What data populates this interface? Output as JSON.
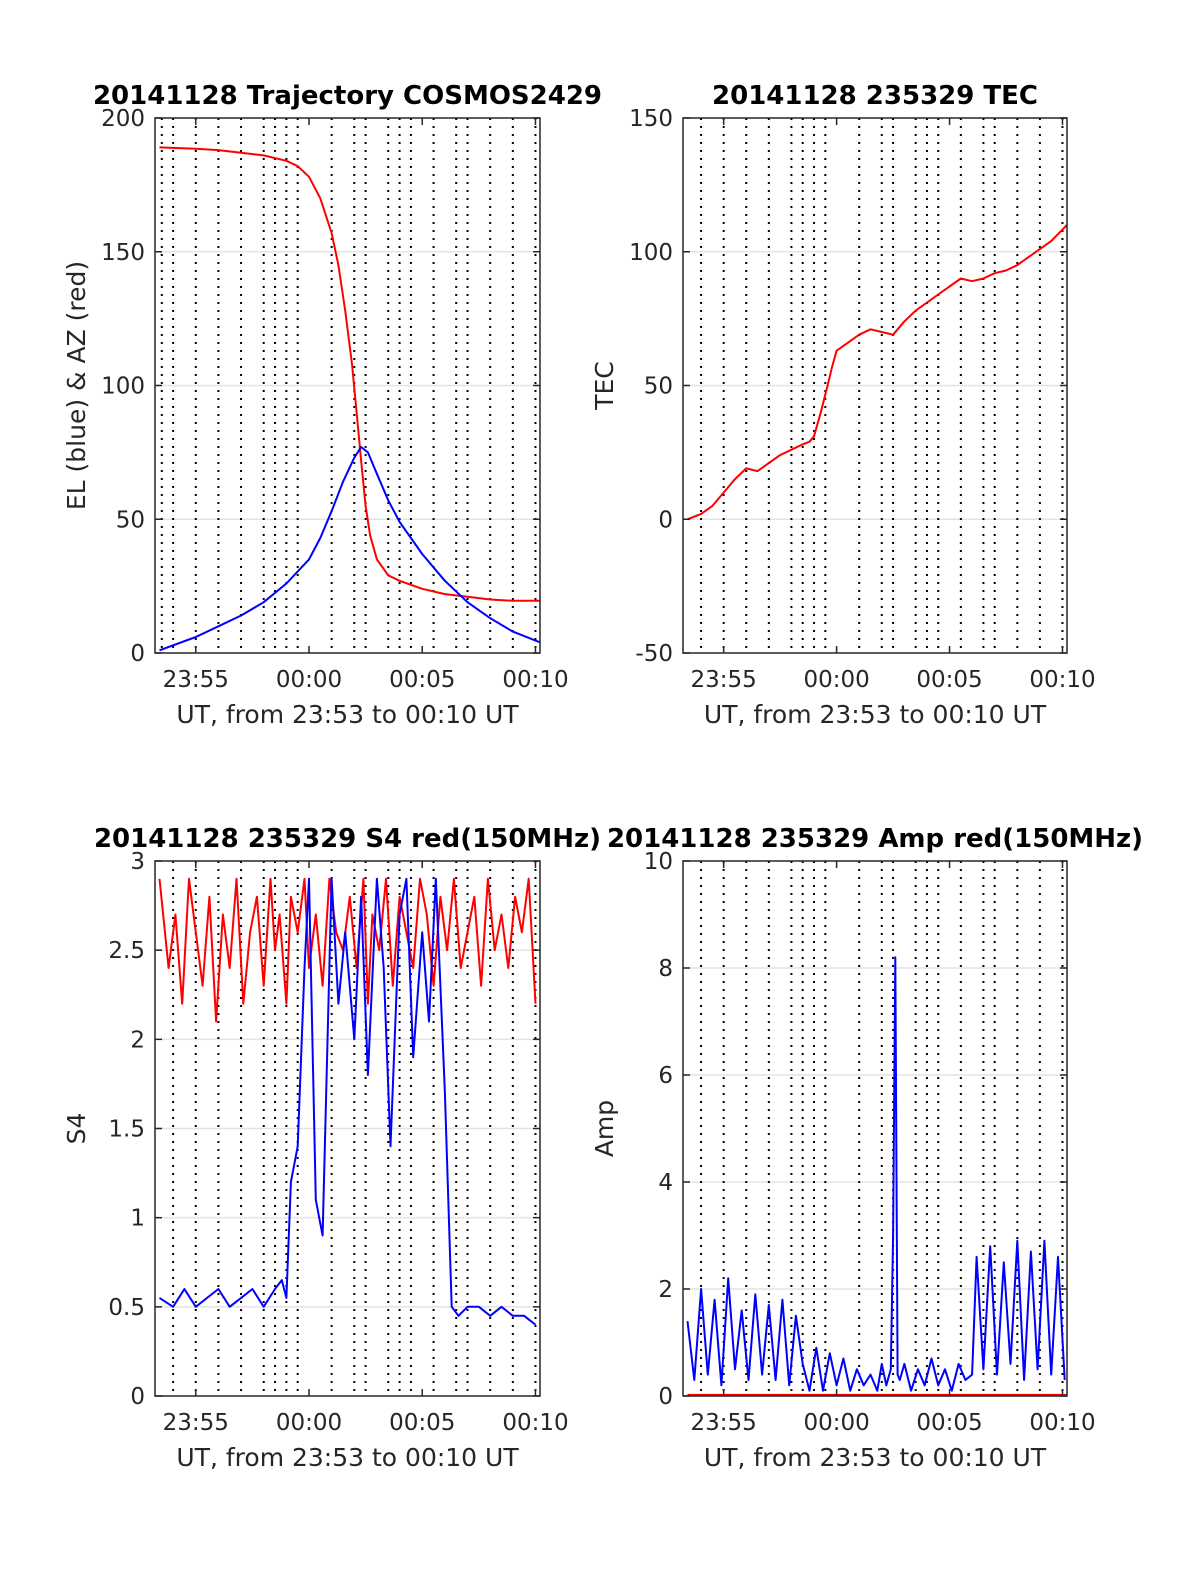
{
  "chart_data": [
    {
      "id": "traj",
      "type": "line",
      "title": "20141128 Trajectory COSMOS2429",
      "xlabel": "UT, from 23:53 to 00:10 UT",
      "ylabel": "EL (blue) & AZ (red)",
      "xlim": [
        -6.8,
        10.2
      ],
      "ylim": [
        0,
        200
      ],
      "xticks": [
        {
          "v": -5,
          "label": "23:55"
        },
        {
          "v": 0,
          "label": "00:00"
        },
        {
          "v": 5,
          "label": "00:05"
        },
        {
          "v": 10,
          "label": "00:10"
        }
      ],
      "yticks": [
        {
          "v": 0,
          "label": "0"
        },
        {
          "v": 50,
          "label": "50"
        },
        {
          "v": 100,
          "label": "100"
        },
        {
          "v": 150,
          "label": "150"
        },
        {
          "v": 200,
          "label": "200"
        }
      ],
      "vlines": [
        -6.5,
        -6.0,
        -5.0,
        -4.0,
        -3.0,
        -2.0,
        -1.5,
        -1.0,
        -0.5,
        1.0,
        2.0,
        2.5,
        3.5,
        4.0,
        4.5,
        5.5,
        6.5,
        7.0,
        8.0,
        9.0,
        10.0
      ],
      "series": [
        {
          "color": "#ff0000",
          "x": [
            -6.6,
            -5,
            -4,
            -3,
            -2,
            -1,
            -0.5,
            0,
            0.5,
            1.0,
            1.3,
            1.6,
            1.9,
            2.1,
            2.3,
            2.5,
            2.7,
            3.0,
            3.5,
            4.0,
            5.0,
            6.0,
            7.0,
            8.0,
            9.0,
            10.2
          ],
          "y": [
            189,
            188.5,
            188,
            187,
            186,
            184,
            182,
            178,
            170,
            157,
            145,
            128,
            108,
            90,
            72,
            55,
            44,
            35,
            29,
            27,
            24,
            22,
            21,
            20,
            19.5,
            19.5
          ]
        },
        {
          "color": "#0000ff",
          "x": [
            -6.6,
            -5,
            -4,
            -3,
            -2,
            -1,
            0,
            0.5,
            1.0,
            1.5,
            2.0,
            2.3,
            2.6,
            3.0,
            3.5,
            4.0,
            5.0,
            6.0,
            7.0,
            8.0,
            9.0,
            10.2
          ],
          "y": [
            1,
            6,
            10,
            14,
            19,
            26,
            35,
            43,
            53,
            64,
            73,
            77,
            75,
            67,
            57,
            49,
            37,
            27,
            19,
            13,
            8,
            4
          ]
        }
      ]
    },
    {
      "id": "tec",
      "type": "line",
      "title": "20141128 235329 TEC",
      "xlabel": "UT, from 23:53 to 00:10 UT",
      "ylabel": "TEC",
      "xlim": [
        -6.8,
        10.2
      ],
      "ylim": [
        -50,
        150
      ],
      "xticks": [
        {
          "v": -5,
          "label": "23:55"
        },
        {
          "v": 0,
          "label": "00:00"
        },
        {
          "v": 5,
          "label": "00:05"
        },
        {
          "v": 10,
          "label": "00:10"
        }
      ],
      "yticks": [
        {
          "v": -50,
          "label": "-50"
        },
        {
          "v": 0,
          "label": "0"
        },
        {
          "v": 50,
          "label": "50"
        },
        {
          "v": 100,
          "label": "100"
        },
        {
          "v": 150,
          "label": "150"
        }
      ],
      "vlines": [
        -6.0,
        -5.0,
        -4.0,
        -3.0,
        -2.0,
        -1.5,
        -1.0,
        -0.5,
        1.0,
        2.0,
        2.5,
        3.5,
        4.0,
        4.5,
        5.5,
        6.5,
        7.0,
        8.0,
        9.0,
        10.0
      ],
      "series": [
        {
          "color": "#ff0000",
          "x": [
            -6.6,
            -6.0,
            -5.5,
            -5.0,
            -4.5,
            -4.0,
            -3.5,
            -3.0,
            -2.5,
            -2.0,
            -1.5,
            -1.2,
            -1.0,
            -0.7,
            -0.4,
            -0.2,
            0.0,
            0.5,
            1.0,
            1.5,
            2.0,
            2.5,
            3.0,
            3.5,
            4.0,
            4.5,
            5.0,
            5.5,
            6.0,
            6.5,
            7.0,
            7.5,
            8.0,
            8.5,
            9.0,
            9.5,
            10.2
          ],
          "y": [
            0,
            2,
            5,
            10,
            15,
            19,
            18,
            21,
            24,
            26,
            28,
            29,
            31,
            40,
            50,
            57,
            63,
            66,
            69,
            71,
            70,
            69,
            74,
            78,
            81,
            84,
            87,
            90,
            89,
            90,
            92,
            93,
            95,
            98,
            101,
            104,
            110
          ]
        }
      ]
    },
    {
      "id": "s4",
      "type": "line",
      "title": "20141128 235329 S4 red(150MHz)",
      "xlabel": "UT, from 23:53 to 00:10 UT",
      "ylabel": "S4",
      "xlim": [
        -6.8,
        10.2
      ],
      "ylim": [
        0,
        3
      ],
      "xticks": [
        {
          "v": -5,
          "label": "23:55"
        },
        {
          "v": 0,
          "label": "00:00"
        },
        {
          "v": 5,
          "label": "00:05"
        },
        {
          "v": 10,
          "label": "00:10"
        }
      ],
      "yticks": [
        {
          "v": 0,
          "label": "0"
        },
        {
          "v": 0.5,
          "label": "0.5"
        },
        {
          "v": 1,
          "label": "1"
        },
        {
          "v": 1.5,
          "label": "1.5"
        },
        {
          "v": 2,
          "label": "2"
        },
        {
          "v": 2.5,
          "label": "2.5"
        },
        {
          "v": 3,
          "label": "3"
        }
      ],
      "vlines": [
        -6.0,
        -5.0,
        -4.0,
        -3.0,
        -2.0,
        -1.5,
        -1.0,
        -0.5,
        1.0,
        2.0,
        2.5,
        3.5,
        4.0,
        4.5,
        5.5,
        6.5,
        7.0,
        8.0,
        9.0,
        10.0
      ],
      "series": [
        {
          "color": "#ff0000",
          "note_x_start": -6.6,
          "x": [
            -6.6,
            -6.2,
            -5.9,
            -5.6,
            -5.3,
            -5.0,
            -4.7,
            -4.4,
            -4.1,
            -3.8,
            -3.5,
            -3.2,
            -2.9,
            -2.6,
            -2.3,
            -2.0,
            -1.7,
            -1.5,
            -1.3,
            -1.0,
            -0.8,
            -0.5,
            -0.2,
            0.0,
            0.3,
            0.6,
            0.9,
            1.2,
            1.5,
            1.8,
            2.1,
            2.4,
            2.6,
            2.8,
            3.1,
            3.4,
            3.7,
            4.0,
            4.3,
            4.6,
            4.9,
            5.2,
            5.5,
            5.8,
            6.1,
            6.4,
            6.7,
            7.0,
            7.3,
            7.6,
            7.9,
            8.2,
            8.5,
            8.8,
            9.1,
            9.4,
            9.7,
            10.0
          ],
          "y": [
            2.9,
            2.4,
            2.7,
            2.2,
            2.9,
            2.6,
            2.3,
            2.8,
            2.1,
            2.7,
            2.4,
            2.9,
            2.2,
            2.6,
            2.8,
            2.3,
            2.9,
            2.5,
            2.7,
            2.2,
            2.8,
            2.6,
            2.9,
            2.4,
            2.7,
            2.3,
            2.9,
            2.6,
            2.5,
            2.8,
            2.4,
            2.9,
            2.2,
            2.7,
            2.5,
            2.9,
            2.3,
            2.8,
            2.6,
            2.4,
            2.9,
            2.7,
            2.3,
            2.8,
            2.5,
            2.9,
            2.4,
            2.6,
            2.8,
            2.3,
            2.9,
            2.5,
            2.7,
            2.4,
            2.8,
            2.6,
            2.9,
            2.2
          ]
        },
        {
          "color": "#0000ff",
          "x": [
            -6.6,
            -6.0,
            -5.5,
            -5.0,
            -4.5,
            -4.0,
            -3.5,
            -3.0,
            -2.5,
            -2.0,
            -1.5,
            -1.2,
            -1.0,
            -0.8,
            -0.5,
            -0.2,
            0.0,
            0.3,
            0.6,
            1.0,
            1.3,
            1.6,
            2.0,
            2.3,
            2.6,
            3.0,
            3.3,
            3.6,
            4.0,
            4.3,
            4.6,
            5.0,
            5.3,
            5.6,
            5.8,
            6.0,
            6.3,
            6.6,
            7.0,
            7.5,
            8.0,
            8.5,
            9.0,
            9.5,
            10.0
          ],
          "y": [
            0.55,
            0.5,
            0.6,
            0.5,
            0.55,
            0.6,
            0.5,
            0.55,
            0.6,
            0.5,
            0.6,
            0.65,
            0.55,
            1.2,
            1.4,
            2.4,
            2.9,
            1.1,
            0.9,
            2.9,
            2.2,
            2.6,
            2.0,
            2.8,
            1.8,
            2.9,
            2.4,
            1.4,
            2.7,
            2.9,
            1.9,
            2.6,
            2.1,
            2.9,
            2.3,
            1.7,
            0.5,
            0.45,
            0.5,
            0.5,
            0.45,
            0.5,
            0.45,
            0.45,
            0.4
          ]
        }
      ]
    },
    {
      "id": "amp",
      "type": "line",
      "title": "20141128 235329 Amp red(150MHz)",
      "xlabel": "UT, from 23:53 to 00:10 UT",
      "ylabel": "Amp",
      "xlim": [
        -6.8,
        10.2
      ],
      "ylim": [
        0,
        10
      ],
      "xticks": [
        {
          "v": -5,
          "label": "23:55"
        },
        {
          "v": 0,
          "label": "00:00"
        },
        {
          "v": 5,
          "label": "00:05"
        },
        {
          "v": 10,
          "label": "00:10"
        }
      ],
      "yticks": [
        {
          "v": 0,
          "label": "0"
        },
        {
          "v": 2,
          "label": "2"
        },
        {
          "v": 4,
          "label": "4"
        },
        {
          "v": 6,
          "label": "6"
        },
        {
          "v": 8,
          "label": "8"
        },
        {
          "v": 10,
          "label": "10"
        }
      ],
      "vlines": [
        -6.0,
        -5.0,
        -4.0,
        -3.0,
        -2.0,
        -1.5,
        -1.0,
        -0.5,
        1.0,
        2.0,
        2.5,
        3.5,
        4.0,
        4.5,
        5.5,
        6.5,
        7.0,
        8.0,
        9.0,
        10.0
      ],
      "series": [
        {
          "color": "#ff0000",
          "x": [
            -6.6,
            10.2
          ],
          "y": [
            0.02,
            0.02
          ]
        },
        {
          "color": "#0000ff",
          "x": [
            -6.6,
            -6.3,
            -6.0,
            -5.7,
            -5.4,
            -5.1,
            -4.8,
            -4.5,
            -4.2,
            -3.9,
            -3.6,
            -3.3,
            -3.0,
            -2.7,
            -2.4,
            -2.1,
            -1.8,
            -1.5,
            -1.2,
            -0.9,
            -0.6,
            -0.3,
            0.0,
            0.3,
            0.6,
            0.9,
            1.2,
            1.5,
            1.8,
            2.0,
            2.2,
            2.4,
            2.5,
            2.6,
            2.7,
            2.8,
            3.0,
            3.3,
            3.6,
            3.9,
            4.2,
            4.5,
            4.8,
            5.1,
            5.4,
            5.7,
            6.0,
            6.2,
            6.5,
            6.8,
            7.1,
            7.4,
            7.7,
            8.0,
            8.3,
            8.6,
            8.9,
            9.2,
            9.5,
            9.8,
            10.1
          ],
          "y": [
            1.4,
            0.3,
            2.0,
            0.4,
            1.8,
            0.2,
            2.2,
            0.5,
            1.6,
            0.3,
            1.9,
            0.4,
            1.7,
            0.3,
            1.8,
            0.2,
            1.5,
            0.6,
            0.1,
            0.9,
            0.1,
            0.8,
            0.2,
            0.7,
            0.1,
            0.5,
            0.2,
            0.4,
            0.1,
            0.6,
            0.2,
            0.5,
            3.0,
            8.2,
            0.4,
            0.3,
            0.6,
            0.1,
            0.5,
            0.2,
            0.7,
            0.2,
            0.5,
            0.1,
            0.6,
            0.3,
            0.4,
            2.6,
            0.5,
            2.8,
            0.4,
            2.5,
            0.6,
            2.9,
            0.3,
            2.7,
            0.5,
            2.9,
            0.4,
            2.6,
            0.3
          ]
        }
      ]
    }
  ]
}
